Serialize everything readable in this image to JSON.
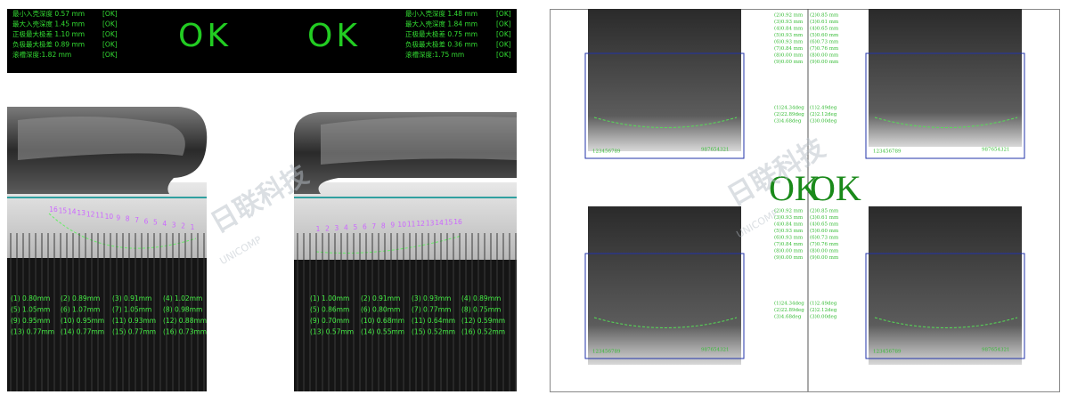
{
  "left_panel": {
    "results": [
      {
        "lines": [
          {
            "text": "最小入壳深度 0.57 mm",
            "status": "[OK]"
          },
          {
            "text": "最大入壳深度 1.45 mm",
            "status": "[OK]"
          },
          {
            "text": "正极最大极差 1.10 mm",
            "status": "[OK]"
          },
          {
            "text": "负极最大极差 0.89 mm",
            "status": "[OK]"
          },
          {
            "text": "滚槽深度:1.82 mm",
            "status": "[OK]"
          }
        ],
        "verdict": "OK"
      },
      {
        "lines": [
          {
            "text": "最小入壳深度 1.48 mm",
            "status": "[OK]"
          },
          {
            "text": "最大入壳深度 1.84 mm",
            "status": "[OK]"
          },
          {
            "text": "正极最大极差 0.75 mm",
            "status": "[OK]"
          },
          {
            "text": "负极最大极差 0.36 mm",
            "status": "[OK]"
          },
          {
            "text": "滚槽深度:1.75 mm",
            "status": "[OK]"
          }
        ],
        "verdict": "OK"
      }
    ],
    "views": [
      {
        "electrodes": [
          "16",
          "15",
          "14",
          "13",
          "12",
          "11",
          "10",
          "9",
          "8",
          "7",
          "6",
          "5",
          "4",
          "3",
          "2",
          "1"
        ],
        "measurements": [
          "(1) 0.80mm",
          "(2) 0.89mm",
          "(3) 0.91mm",
          "(4) 1.02mm",
          "(5) 1.05mm",
          "(6) 1.07mm",
          "(7) 1.05mm",
          "(8) 0.98mm",
          "(9) 0.95mm",
          "(10) 0.95mm",
          "(11) 0.93mm",
          "(12) 0.88mm",
          "(13) 0.77mm",
          "(14) 0.77mm",
          "(15) 0.77mm",
          "(16) 0.73mm"
        ]
      },
      {
        "electrodes": [
          "1",
          "2",
          "3",
          "4",
          "5",
          "6",
          "7",
          "8",
          "9",
          "10",
          "11",
          "12",
          "13",
          "14",
          "15",
          "16"
        ],
        "measurements": [
          "(1) 1.00mm",
          "(2) 0.91mm",
          "(3) 0.93mm",
          "(4) 0.89mm",
          "(5) 0.86mm",
          "(6) 0.80mm",
          "(7) 0.77mm",
          "(8) 0.75mm",
          "(9) 0.70mm",
          "(10) 0.68mm",
          "(11) 0.64mm",
          "(12) 0.59mm",
          "(13) 0.57mm",
          "(14) 0.55mm",
          "(15) 0.52mm",
          "(16) 0.52mm"
        ]
      }
    ]
  },
  "watermark": {
    "logo": "日联科技",
    "brand": "UNICOMP"
  },
  "right_panel": {
    "verdicts": [
      "OK",
      "OK"
    ],
    "quadrants": [
      {
        "readings": [
          "(2)0.92 mm",
          "(3)0.93 mm",
          "(4)0.84 mm",
          "(5)0.93 mm",
          "(6)0.93 mm",
          "(7)0.84 mm",
          "(8)0.00 mm",
          "(9)0.00 mm"
        ],
        "angles": [
          "(1)24.34deg",
          "(2)22.89deg",
          "(3)4.68deg"
        ],
        "left_numbers": "123456789",
        "right_numbers": "987654321"
      },
      {
        "readings": [
          "(2)0.85 mm",
          "(3)0.61 mm",
          "(4)0.65 mm",
          "(5)0.60 mm",
          "(6)0.73 mm",
          "(7)0.76 mm",
          "(8)0.00 mm",
          "(9)0.00 mm"
        ],
        "angles": [
          "(1)2.49deg",
          "(2)2.12deg",
          "(3)0.00deg"
        ],
        "left_numbers": "123456789",
        "right_numbers": "987654321"
      },
      {
        "readings": [
          "(2)0.92 mm",
          "(3)0.93 mm",
          "(4)0.84 mm",
          "(5)0.93 mm",
          "(6)0.93 mm",
          "(7)0.84 mm",
          "(8)0.00 mm",
          "(9)0.00 mm"
        ],
        "angles": [
          "(1)24.34deg",
          "(2)22.89deg",
          "(3)4.68deg"
        ],
        "left_numbers": "123456789",
        "right_numbers": "987654321"
      },
      {
        "readings": [
          "(2)0.85 mm",
          "(3)0.61 mm",
          "(4)0.65 mm",
          "(5)0.60 mm",
          "(6)0.73 mm",
          "(7)0.76 mm",
          "(8)0.00 mm",
          "(9)0.00 mm"
        ],
        "angles": [
          "(1)2.49deg",
          "(2)2.12deg",
          "(3)0.00deg"
        ],
        "left_numbers": "123456789",
        "right_numbers": "987654321"
      }
    ]
  }
}
